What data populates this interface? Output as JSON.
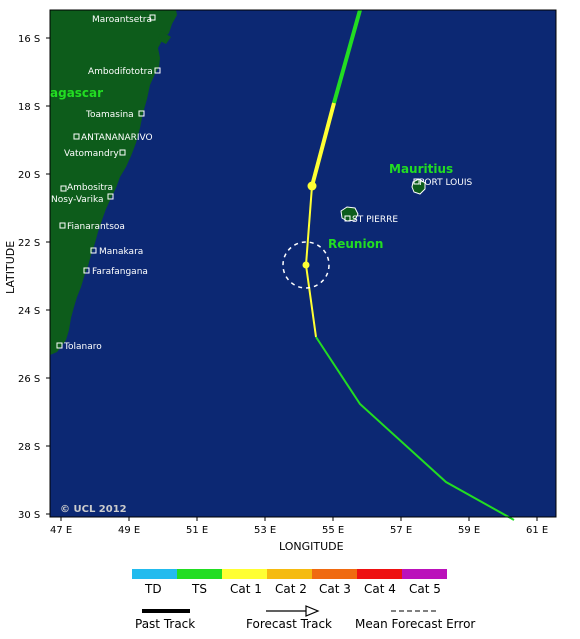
{
  "map": {
    "x_axis_title": "LONGITUDE",
    "y_axis_title": "LATITUDE",
    "copyright": "© UCL 2012",
    "x_ticks": [
      "47 E",
      "49 E",
      "51 E",
      "53 E",
      "55 E",
      "57 E",
      "59 E",
      "61 E"
    ],
    "y_ticks": [
      "16 S",
      "18 S",
      "20 S",
      "22 S",
      "24 S",
      "26 S",
      "28 S",
      "30 S"
    ],
    "regions": {
      "madagascar_partial": "agascar",
      "mauritius": "Mauritius",
      "reunion": "Reunion"
    },
    "towns": [
      "Maroantsetra",
      "Ambodifototra",
      "Toamasina",
      "ANTANANARIVO",
      "Vatomandry",
      "Ambositra",
      "Nosy-Varika",
      "Fianarantsoa",
      "Manakara",
      "Farafangana",
      "Tolanaro",
      "PORT LOUIS",
      "ST PIERRE"
    ]
  },
  "legend": {
    "categories": [
      {
        "label": "TD",
        "color": "#22bbee"
      },
      {
        "label": "TS",
        "color": "#22dd22"
      },
      {
        "label": "Cat 1",
        "color": "#ffff33"
      },
      {
        "label": "Cat 2",
        "color": "#f5bb10"
      },
      {
        "label": "Cat 3",
        "color": "#f06a10"
      },
      {
        "label": "Cat 4",
        "color": "#ee1111"
      },
      {
        "label": "Cat 5",
        "color": "#bb11bb"
      }
    ],
    "past_track": "Past Track",
    "forecast_track": "Forecast Track",
    "error": "Mean Forecast Error"
  },
  "colors": {
    "ocean": "#0c2873",
    "land": "#0d5c1b",
    "track_ts": "#22dd22",
    "track_cat1": "#ffff33"
  }
}
